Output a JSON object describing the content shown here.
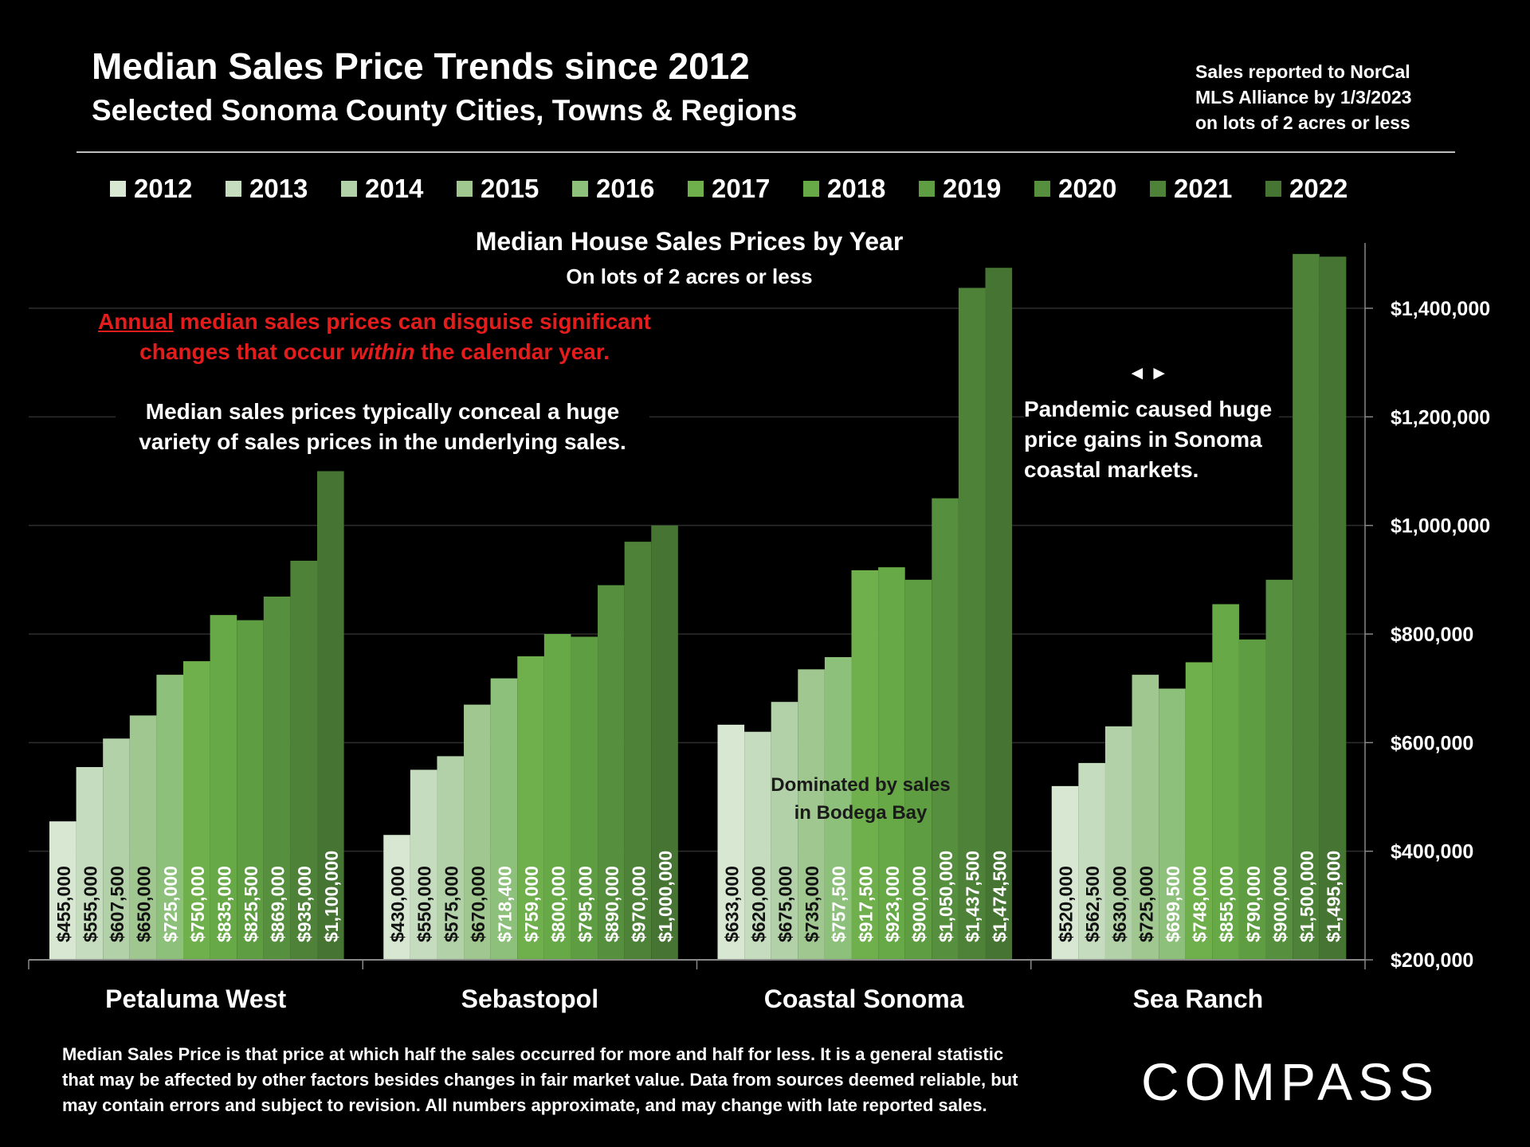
{
  "header": {
    "title": "Median Sales Price Trends since 2012",
    "subtitle": "Selected Sonoma County Cities, Towns & Regions",
    "source_line1": "Sales reported to NorCal",
    "source_line2": "MLS Alliance by 1/3/2023",
    "source_line3": "on lots of 2 acres or less"
  },
  "colors": [
    "#d8e7d2",
    "#c6dcbf",
    "#b3d1a8",
    "#a0c78f",
    "#8dc07a",
    "#6faf4c",
    "#67a847",
    "#5f9d42",
    "#568f3d",
    "#4e8238",
    "#467432"
  ],
  "notes": {
    "red_word": "Annual",
    "red_rest1": " median sales prices can disguise significant",
    "red_line2_pre": "changes that occur ",
    "red_line2_em": "within",
    "red_line2_post": " the calendar year.",
    "white_line1": "Median sales prices typically conceal a huge",
    "white_line2": "variety of sales prices in the underlying sales.",
    "pandemic_line1": "Pandemic caused huge",
    "pandemic_line2": "price gains in Sonoma",
    "pandemic_line3": "coastal markets.",
    "arrows": "◄►",
    "bodega_line1": "Dominated by sales",
    "bodega_line2": "in Bodega Bay"
  },
  "footnote": {
    "line1": "Median Sales Price is that price at which half the sales occurred for more and half for less. It is a general statistic",
    "line2": "that may be affected by other factors besides changes in fair market value. Data from sources deemed reliable, but",
    "line3": "may contain errors and subject to revision.  All numbers approximate, and may change with late reported sales."
  },
  "logo": "COMPASS",
  "chart_data": {
    "type": "bar",
    "title": "Median House Sales Prices by Year",
    "subtitle": "On lots of 2 acres or less",
    "categories": [
      "Petaluma West",
      "Sebastopol",
      "Coastal Sonoma",
      "Sea Ranch"
    ],
    "series_names": [
      "2012",
      "2013",
      "2014",
      "2015",
      "2016",
      "2017",
      "2018",
      "2019",
      "2020",
      "2021",
      "2022"
    ],
    "values": [
      [
        455000,
        555000,
        607500,
        650000,
        725000,
        750000,
        835000,
        825500,
        869000,
        935000,
        1100000
      ],
      [
        430000,
        550000,
        575000,
        670000,
        718400,
        759000,
        800000,
        795000,
        890000,
        970000,
        1000000
      ],
      [
        633000,
        620000,
        675000,
        735000,
        757500,
        917500,
        923000,
        900000,
        1050000,
        1437500,
        1474500
      ],
      [
        520000,
        562500,
        630000,
        725000,
        699500,
        748000,
        855000,
        790000,
        900000,
        1500000,
        1495000
      ]
    ],
    "labels": [
      [
        "$455,000",
        "$555,000",
        "$607,500",
        "$650,000",
        "$725,000",
        "$750,000",
        "$835,000",
        "$825,500",
        "$869,000",
        "$935,000",
        "$1,100,000"
      ],
      [
        "$430,000",
        "$550,000",
        "$575,000",
        "$670,000",
        "$718,400",
        "$759,000",
        "$800,000",
        "$795,000",
        "$890,000",
        "$970,000",
        "$1,000,000"
      ],
      [
        "$633,000",
        "$620,000",
        "$675,000",
        "$735,000",
        "$757,500",
        "$917,500",
        "$923,000",
        "$900,000",
        "$1,050,000",
        "$1,437,500",
        "$1,474,500"
      ],
      [
        "$520,000",
        "$562,500",
        "$630,000",
        "$725,000",
        "$699,500",
        "$748,000",
        "$855,000",
        "$790,000",
        "$900,000",
        "$1,500,000",
        "$1,495,000"
      ]
    ],
    "ylim": [
      200000,
      1520000
    ],
    "yticks": [
      200000,
      400000,
      600000,
      800000,
      1000000,
      1200000,
      1400000
    ],
    "ytick_labels": [
      "$200,000",
      "$400,000",
      "$600,000",
      "$800,000",
      "$1,000,000",
      "$1,200,000",
      "$1,400,000"
    ],
    "grid": true,
    "axis_side": "right",
    "legend": "top"
  }
}
